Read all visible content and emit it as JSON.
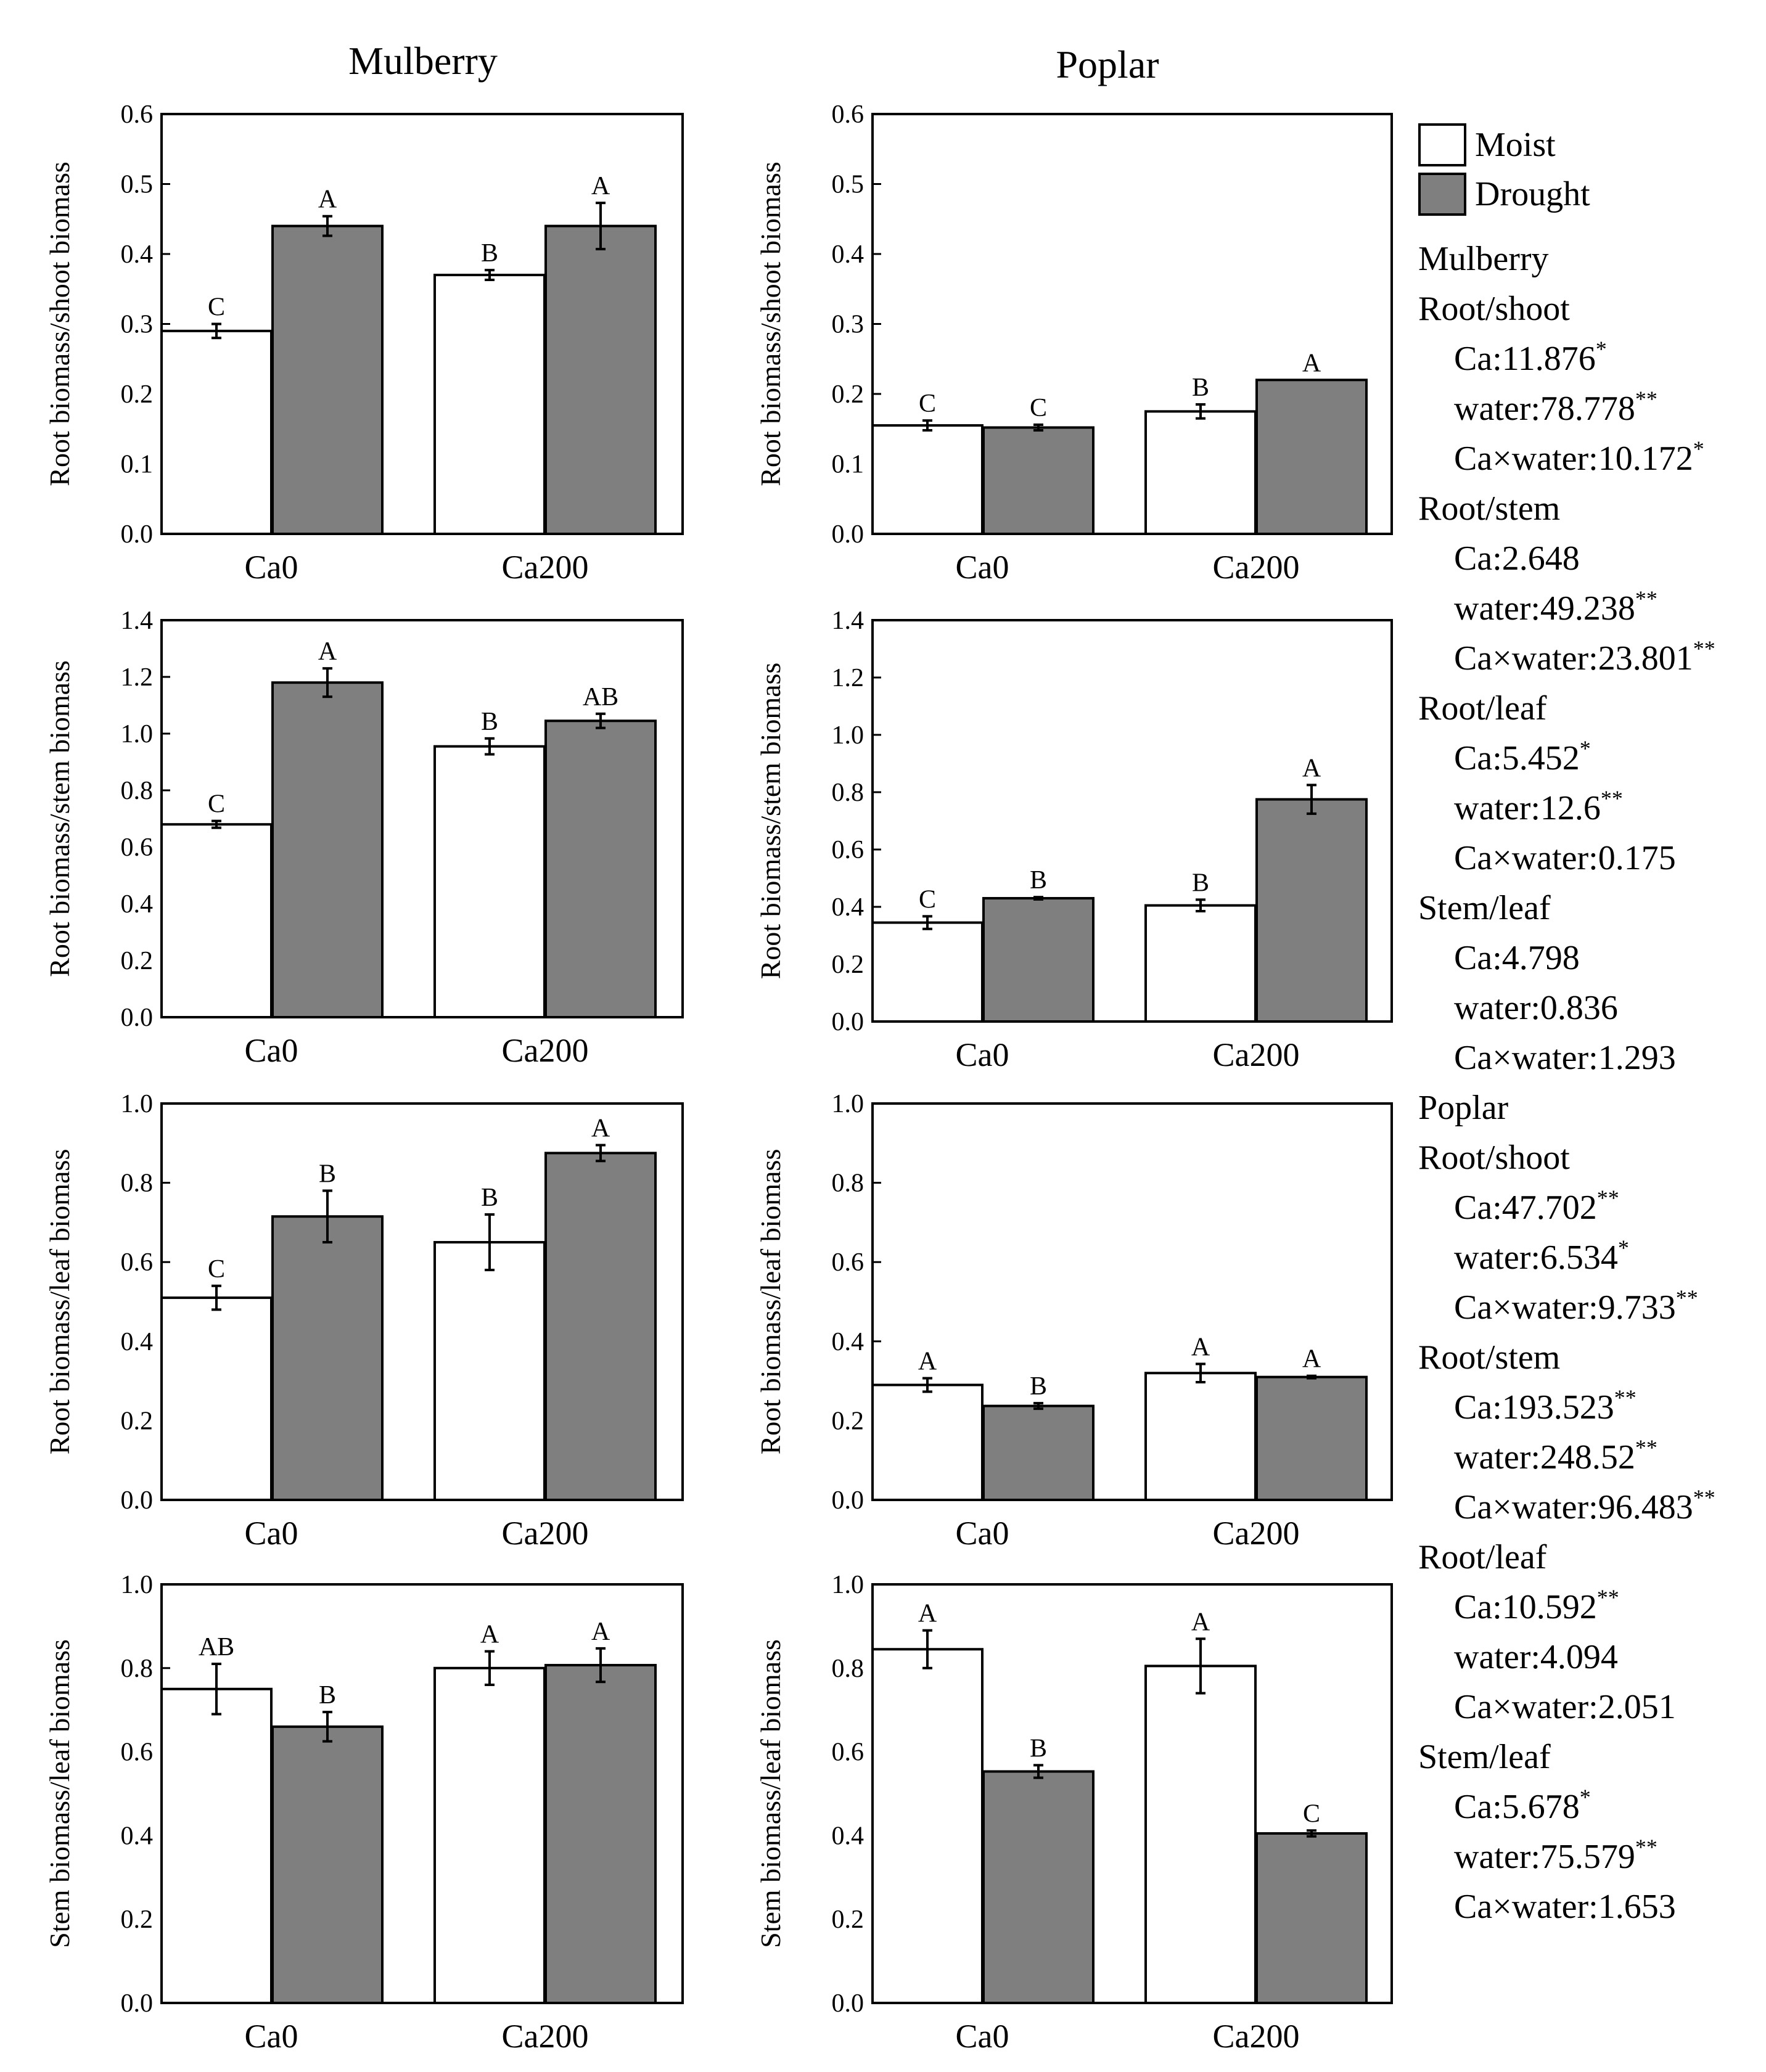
{
  "column_titles": [
    "Mulberry",
    "Poplar"
  ],
  "legend": [
    {
      "label": "Moist",
      "color": "#ffffff"
    },
    {
      "label": "Drought",
      "color": "#7f7f7f"
    }
  ],
  "colors": {
    "moist": "#ffffff",
    "drought": "#7f7f7f",
    "outline": "#000000"
  },
  "chart_data": [
    {
      "id": "mulberry-root-shoot",
      "species": "Mulberry",
      "type": "bar",
      "ylabel": "Root biomass/shoot biomass",
      "ylim": [
        0,
        0.6
      ],
      "yticks": [
        "0.0",
        "0.1",
        "0.2",
        "0.3",
        "0.4",
        "0.5",
        "0.6"
      ],
      "categories": [
        "Ca0",
        "Ca200"
      ],
      "series": [
        {
          "name": "Moist",
          "values": [
            0.29,
            0.37
          ],
          "errors": [
            0.01,
            0.007
          ],
          "letters": [
            "C",
            "B"
          ]
        },
        {
          "name": "Drought",
          "values": [
            0.44,
            0.44
          ],
          "errors": [
            0.014,
            0.033
          ],
          "letters": [
            "A",
            "A"
          ]
        }
      ]
    },
    {
      "id": "poplar-root-shoot",
      "species": "Poplar",
      "type": "bar",
      "ylabel": "Root biomass/shoot biomass",
      "ylim": [
        0,
        0.6
      ],
      "yticks": [
        "0.0",
        "0.1",
        "0.2",
        "0.3",
        "0.4",
        "0.5",
        "0.6"
      ],
      "categories": [
        "Ca0",
        "Ca200"
      ],
      "series": [
        {
          "name": "Moist",
          "values": [
            0.155,
            0.175
          ],
          "errors": [
            0.007,
            0.01
          ],
          "letters": [
            "C",
            "B"
          ]
        },
        {
          "name": "Drought",
          "values": [
            0.152,
            0.22
          ],
          "errors": [
            0.004,
            0
          ],
          "letters": [
            "C",
            "A"
          ]
        }
      ]
    },
    {
      "id": "mulberry-root-stem",
      "species": "Mulberry",
      "type": "bar",
      "ylabel": "Root biomass/stem biomass",
      "ylim": [
        0,
        1.4
      ],
      "yticks": [
        "0.0",
        "0.2",
        "0.4",
        "0.6",
        "0.8",
        "1.0",
        "1.2",
        "1.4"
      ],
      "categories": [
        "Ca0",
        "Ca200"
      ],
      "series": [
        {
          "name": "Moist",
          "values": [
            0.68,
            0.955
          ],
          "errors": [
            0.012,
            0.028
          ],
          "letters": [
            "C",
            "B"
          ]
        },
        {
          "name": "Drought",
          "values": [
            1.18,
            1.045
          ],
          "errors": [
            0.05,
            0.025
          ],
          "letters": [
            "A",
            "AB"
          ]
        }
      ]
    },
    {
      "id": "poplar-root-stem",
      "species": "Poplar",
      "type": "bar",
      "ylabel": "Root biomass/stem biomass",
      "ylim": [
        0,
        1.4
      ],
      "yticks": [
        "0.0",
        "0.2",
        "0.4",
        "0.6",
        "0.8",
        "1.0",
        "1.2",
        "1.4"
      ],
      "categories": [
        "Ca0",
        "Ca200"
      ],
      "series": [
        {
          "name": "Moist",
          "values": [
            0.345,
            0.405
          ],
          "errors": [
            0.022,
            0.02
          ],
          "letters": [
            "C",
            "B"
          ]
        },
        {
          "name": "Drought",
          "values": [
            0.43,
            0.775
          ],
          "errors": [
            0.004,
            0.05
          ],
          "letters": [
            "B",
            "A"
          ]
        }
      ]
    },
    {
      "id": "mulberry-root-leaf",
      "species": "Mulberry",
      "type": "bar",
      "ylabel": "Root biomass/leaf biomass",
      "ylim": [
        0,
        1.0
      ],
      "yticks": [
        "0.0",
        "0.2",
        "0.4",
        "0.6",
        "0.8",
        "1.0"
      ],
      "categories": [
        "Ca0",
        "Ca200"
      ],
      "series": [
        {
          "name": "Moist",
          "values": [
            0.51,
            0.65
          ],
          "errors": [
            0.03,
            0.07
          ],
          "letters": [
            "C",
            "B"
          ]
        },
        {
          "name": "Drought",
          "values": [
            0.715,
            0.875
          ],
          "errors": [
            0.065,
            0.02
          ],
          "letters": [
            "B",
            "A"
          ]
        }
      ]
    },
    {
      "id": "poplar-root-leaf",
      "species": "Poplar",
      "type": "bar",
      "ylabel": "Root biomass/leaf biomass",
      "ylim": [
        0,
        1.0
      ],
      "yticks": [
        "0.0",
        "0.2",
        "0.4",
        "0.6",
        "0.8",
        "1.0"
      ],
      "categories": [
        "Ca0",
        "Ca200"
      ],
      "series": [
        {
          "name": "Moist",
          "values": [
            0.29,
            0.32
          ],
          "errors": [
            0.017,
            0.023
          ],
          "letters": [
            "A",
            "A"
          ]
        },
        {
          "name": "Drought",
          "values": [
            0.237,
            0.31
          ],
          "errors": [
            0.007,
            0.003
          ],
          "letters": [
            "B",
            "A"
          ]
        }
      ]
    },
    {
      "id": "mulberry-stem-leaf",
      "species": "Mulberry",
      "type": "bar",
      "ylabel": "Stem biomass/leaf biomass",
      "ylim": [
        0,
        1.0
      ],
      "yticks": [
        "0.0",
        "0.2",
        "0.4",
        "0.6",
        "0.8",
        "1.0"
      ],
      "categories": [
        "Ca0",
        "Ca200"
      ],
      "series": [
        {
          "name": "Moist",
          "values": [
            0.75,
            0.8
          ],
          "errors": [
            0.06,
            0.04
          ],
          "letters": [
            "AB",
            "A"
          ]
        },
        {
          "name": "Drought",
          "values": [
            0.66,
            0.807
          ],
          "errors": [
            0.035,
            0.04
          ],
          "letters": [
            "B",
            "A"
          ]
        }
      ]
    },
    {
      "id": "poplar-stem-leaf",
      "species": "Poplar",
      "type": "bar",
      "ylabel": "Stem biomass/leaf biomass",
      "ylim": [
        0,
        1.0
      ],
      "yticks": [
        "0.0",
        "0.2",
        "0.4",
        "0.6",
        "0.8",
        "1.0"
      ],
      "categories": [
        "Ca0",
        "Ca200"
      ],
      "series": [
        {
          "name": "Moist",
          "values": [
            0.845,
            0.805
          ],
          "errors": [
            0.045,
            0.065
          ],
          "letters": [
            "A",
            "A"
          ]
        },
        {
          "name": "Drought",
          "values": [
            0.553,
            0.405
          ],
          "errors": [
            0.015,
            0.007
          ],
          "letters": [
            "B",
            "C"
          ]
        }
      ]
    }
  ],
  "anova": [
    {
      "species": "Mulberry",
      "groups": [
        {
          "name": "Root/shoot",
          "entries": [
            {
              "label": "Ca:11.876",
              "sig": "*"
            },
            {
              "label": "water:78.778",
              "sig": "**"
            },
            {
              "label": "Ca×water:10.172",
              "sig": "*"
            }
          ]
        },
        {
          "name": "Root/stem",
          "entries": [
            {
              "label": "Ca:2.648",
              "sig": ""
            },
            {
              "label": "water:49.238",
              "sig": "**"
            },
            {
              "label": "Ca×water:23.801",
              "sig": "**"
            }
          ]
        },
        {
          "name": "Root/leaf",
          "entries": [
            {
              "label": "Ca:5.452",
              "sig": "*"
            },
            {
              "label": "water:12.6",
              "sig": "**"
            },
            {
              "label": "Ca×water:0.175",
              "sig": ""
            }
          ]
        },
        {
          "name": "Stem/leaf",
          "entries": [
            {
              "label": "Ca:4.798",
              "sig": ""
            },
            {
              "label": "water:0.836",
              "sig": ""
            },
            {
              "label": "Ca×water:1.293",
              "sig": ""
            }
          ]
        }
      ]
    },
    {
      "species": "Poplar",
      "groups": [
        {
          "name": "Root/shoot",
          "entries": [
            {
              "label": "Ca:47.702",
              "sig": "**"
            },
            {
              "label": "water:6.534",
              "sig": "*"
            },
            {
              "label": "Ca×water:9.733",
              "sig": "**"
            }
          ]
        },
        {
          "name": "Root/stem",
          "entries": [
            {
              "label": "Ca:193.523",
              "sig": "**"
            },
            {
              "label": "water:248.52",
              "sig": "**"
            },
            {
              "label": "Ca×water:96.483",
              "sig": "**"
            }
          ]
        },
        {
          "name": "Root/leaf",
          "entries": [
            {
              "label": "Ca:10.592",
              "sig": "**"
            },
            {
              "label": "water:4.094",
              "sig": ""
            },
            {
              "label": "Ca×water:2.051",
              "sig": ""
            }
          ]
        },
        {
          "name": "Stem/leaf",
          "entries": [
            {
              "label": "Ca:5.678",
              "sig": "*"
            },
            {
              "label": "water:75.579",
              "sig": "**"
            },
            {
              "label": "Ca×water:1.653",
              "sig": ""
            }
          ]
        }
      ]
    }
  ]
}
